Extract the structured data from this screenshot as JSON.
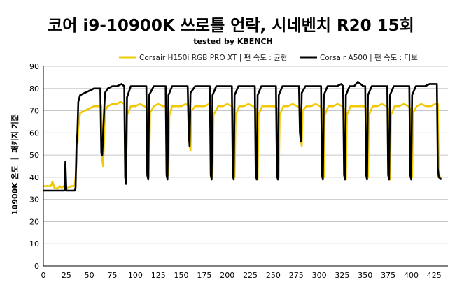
{
  "chart_data": {
    "type": "line",
    "title": "코어 i9-10900K 쓰로틀 언락, 시네벤치 R20 15회",
    "subtitle": "tested by KBENCH",
    "xlabel": "",
    "ylabel": "10900K 온도 ｜ 패키지 기준",
    "xlim": [
      0,
      440
    ],
    "ylim": [
      0,
      90
    ],
    "x_ticks": [
      0,
      25,
      50,
      75,
      100,
      125,
      150,
      175,
      200,
      225,
      250,
      275,
      300,
      325,
      350,
      375,
      400,
      425
    ],
    "y_ticks": [
      0,
      10,
      20,
      30,
      40,
      50,
      60,
      70,
      80,
      90
    ],
    "grid": "horizontal",
    "legend_position": "top-right",
    "series": [
      {
        "name": "Corsair H150i RGB PRO XT | 팬 속도 : 균형",
        "color": "#f2c800",
        "points": [
          [
            0,
            36
          ],
          [
            8,
            36
          ],
          [
            10,
            38
          ],
          [
            12,
            35
          ],
          [
            16,
            35
          ],
          [
            18,
            36
          ],
          [
            20,
            35
          ],
          [
            24,
            37
          ],
          [
            26,
            35
          ],
          [
            30,
            36
          ],
          [
            34,
            36
          ],
          [
            36,
            45
          ],
          [
            38,
            62
          ],
          [
            40,
            69
          ],
          [
            45,
            70
          ],
          [
            50,
            71
          ],
          [
            55,
            72
          ],
          [
            60,
            72
          ],
          [
            63,
            72
          ],
          [
            64,
            48
          ],
          [
            65,
            45
          ],
          [
            67,
            70
          ],
          [
            70,
            72
          ],
          [
            75,
            73
          ],
          [
            80,
            73
          ],
          [
            84,
            74
          ],
          [
            88,
            73
          ],
          [
            89,
            44
          ],
          [
            90,
            39
          ],
          [
            91,
            68
          ],
          [
            95,
            72
          ],
          [
            100,
            72
          ],
          [
            105,
            73
          ],
          [
            110,
            72
          ],
          [
            113,
            71
          ],
          [
            114,
            44
          ],
          [
            115,
            40
          ],
          [
            116,
            69
          ],
          [
            120,
            72
          ],
          [
            125,
            73
          ],
          [
            130,
            72
          ],
          [
            134,
            72
          ],
          [
            135,
            44
          ],
          [
            136,
            41
          ],
          [
            137,
            68
          ],
          [
            140,
            72
          ],
          [
            145,
            72
          ],
          [
            150,
            72
          ],
          [
            155,
            73
          ],
          [
            158,
            72
          ],
          [
            159,
            55
          ],
          [
            160,
            52
          ],
          [
            161,
            70
          ],
          [
            165,
            72
          ],
          [
            170,
            72
          ],
          [
            175,
            72
          ],
          [
            180,
            73
          ],
          [
            182,
            71
          ],
          [
            183,
            43
          ],
          [
            184,
            40
          ],
          [
            185,
            68
          ],
          [
            190,
            72
          ],
          [
            195,
            72
          ],
          [
            200,
            73
          ],
          [
            205,
            72
          ],
          [
            206,
            71
          ],
          [
            207,
            43
          ],
          [
            208,
            40
          ],
          [
            209,
            68
          ],
          [
            213,
            72
          ],
          [
            218,
            72
          ],
          [
            223,
            73
          ],
          [
            228,
            72
          ],
          [
            231,
            71
          ],
          [
            232,
            42
          ],
          [
            233,
            39
          ],
          [
            234,
            68
          ],
          [
            238,
            72
          ],
          [
            243,
            72
          ],
          [
            248,
            72
          ],
          [
            252,
            72
          ],
          [
            254,
            71
          ],
          [
            255,
            43
          ],
          [
            256,
            40
          ],
          [
            257,
            68
          ],
          [
            261,
            72
          ],
          [
            266,
            72
          ],
          [
            271,
            73
          ],
          [
            276,
            72
          ],
          [
            279,
            71
          ],
          [
            280,
            57
          ],
          [
            281,
            54
          ],
          [
            282,
            70
          ],
          [
            286,
            72
          ],
          [
            291,
            72
          ],
          [
            296,
            73
          ],
          [
            301,
            72
          ],
          [
            303,
            71
          ],
          [
            304,
            43
          ],
          [
            305,
            40
          ],
          [
            306,
            68
          ],
          [
            310,
            72
          ],
          [
            315,
            72
          ],
          [
            320,
            73
          ],
          [
            325,
            72
          ],
          [
            327,
            71
          ],
          [
            328,
            42
          ],
          [
            329,
            39
          ],
          [
            330,
            68
          ],
          [
            334,
            72
          ],
          [
            339,
            72
          ],
          [
            344,
            72
          ],
          [
            349,
            72
          ],
          [
            351,
            71
          ],
          [
            352,
            43
          ],
          [
            353,
            40
          ],
          [
            354,
            68
          ],
          [
            358,
            72
          ],
          [
            363,
            72
          ],
          [
            368,
            73
          ],
          [
            373,
            72
          ],
          [
            375,
            71
          ],
          [
            376,
            41
          ],
          [
            377,
            39
          ],
          [
            378,
            68
          ],
          [
            382,
            72
          ],
          [
            387,
            72
          ],
          [
            392,
            73
          ],
          [
            397,
            72
          ],
          [
            399,
            71
          ],
          [
            400,
            44
          ],
          [
            401,
            40
          ],
          [
            402,
            69
          ],
          [
            406,
            72
          ],
          [
            411,
            73
          ],
          [
            416,
            72
          ],
          [
            421,
            72
          ],
          [
            426,
            73
          ],
          [
            429,
            73
          ],
          [
            430,
            44
          ],
          [
            431,
            40
          ],
          [
            433,
            40
          ]
        ]
      },
      {
        "name": "Corsair A500 | 팬 속도 : 터보",
        "color": "#000000",
        "points": [
          [
            0,
            34
          ],
          [
            10,
            34
          ],
          [
            15,
            34
          ],
          [
            20,
            34
          ],
          [
            23,
            34
          ],
          [
            24,
            47
          ],
          [
            25,
            34
          ],
          [
            30,
            34
          ],
          [
            34,
            34
          ],
          [
            35,
            35
          ],
          [
            36,
            54
          ],
          [
            37,
            60
          ],
          [
            38,
            74
          ],
          [
            40,
            77
          ],
          [
            45,
            78
          ],
          [
            50,
            79
          ],
          [
            55,
            80
          ],
          [
            60,
            80
          ],
          [
            62,
            80
          ],
          [
            63,
            51
          ],
          [
            64,
            50
          ],
          [
            65,
            60
          ],
          [
            67,
            78
          ],
          [
            70,
            80
          ],
          [
            75,
            81
          ],
          [
            80,
            81
          ],
          [
            85,
            82
          ],
          [
            88,
            81
          ],
          [
            89,
            40
          ],
          [
            90,
            37
          ],
          [
            91,
            76
          ],
          [
            95,
            81
          ],
          [
            100,
            81
          ],
          [
            105,
            81
          ],
          [
            110,
            81
          ],
          [
            112,
            81
          ],
          [
            113,
            41
          ],
          [
            114,
            39
          ],
          [
            115,
            77
          ],
          [
            120,
            81
          ],
          [
            125,
            81
          ],
          [
            130,
            81
          ],
          [
            133,
            81
          ],
          [
            134,
            41
          ],
          [
            135,
            39
          ],
          [
            136,
            77
          ],
          [
            140,
            81
          ],
          [
            145,
            81
          ],
          [
            150,
            81
          ],
          [
            155,
            81
          ],
          [
            157,
            81
          ],
          [
            158,
            60
          ],
          [
            159,
            54
          ],
          [
            160,
            78
          ],
          [
            165,
            81
          ],
          [
            170,
            81
          ],
          [
            175,
            81
          ],
          [
            180,
            81
          ],
          [
            181,
            81
          ],
          [
            182,
            41
          ],
          [
            183,
            39
          ],
          [
            184,
            77
          ],
          [
            188,
            81
          ],
          [
            193,
            81
          ],
          [
            198,
            81
          ],
          [
            203,
            81
          ],
          [
            205,
            81
          ],
          [
            206,
            41
          ],
          [
            207,
            39
          ],
          [
            208,
            77
          ],
          [
            212,
            81
          ],
          [
            217,
            81
          ],
          [
            222,
            81
          ],
          [
            227,
            81
          ],
          [
            230,
            81
          ],
          [
            231,
            41
          ],
          [
            232,
            39
          ],
          [
            233,
            77
          ],
          [
            237,
            81
          ],
          [
            242,
            81
          ],
          [
            247,
            81
          ],
          [
            251,
            81
          ],
          [
            253,
            81
          ],
          [
            254,
            41
          ],
          [
            255,
            39
          ],
          [
            256,
            77
          ],
          [
            260,
            81
          ],
          [
            265,
            81
          ],
          [
            270,
            81
          ],
          [
            275,
            81
          ],
          [
            278,
            81
          ],
          [
            279,
            60
          ],
          [
            280,
            56
          ],
          [
            281,
            78
          ],
          [
            285,
            81
          ],
          [
            290,
            81
          ],
          [
            295,
            81
          ],
          [
            300,
            81
          ],
          [
            302,
            81
          ],
          [
            303,
            41
          ],
          [
            304,
            39
          ],
          [
            305,
            77
          ],
          [
            309,
            81
          ],
          [
            314,
            81
          ],
          [
            319,
            81
          ],
          [
            324,
            82
          ],
          [
            326,
            81
          ],
          [
            327,
            41
          ],
          [
            328,
            39
          ],
          [
            329,
            77
          ],
          [
            333,
            81
          ],
          [
            338,
            81
          ],
          [
            342,
            83
          ],
          [
            348,
            81
          ],
          [
            350,
            81
          ],
          [
            351,
            41
          ],
          [
            352,
            39
          ],
          [
            353,
            77
          ],
          [
            357,
            81
          ],
          [
            362,
            81
          ],
          [
            367,
            81
          ],
          [
            372,
            81
          ],
          [
            374,
            81
          ],
          [
            375,
            41
          ],
          [
            376,
            39
          ],
          [
            377,
            77
          ],
          [
            381,
            81
          ],
          [
            386,
            81
          ],
          [
            391,
            81
          ],
          [
            396,
            81
          ],
          [
            398,
            81
          ],
          [
            399,
            41
          ],
          [
            400,
            39
          ],
          [
            401,
            77
          ],
          [
            405,
            81
          ],
          [
            410,
            81
          ],
          [
            415,
            81
          ],
          [
            420,
            82
          ],
          [
            426,
            82
          ],
          [
            428,
            82
          ],
          [
            429,
            44
          ],
          [
            430,
            40
          ],
          [
            433,
            39
          ]
        ]
      }
    ]
  }
}
